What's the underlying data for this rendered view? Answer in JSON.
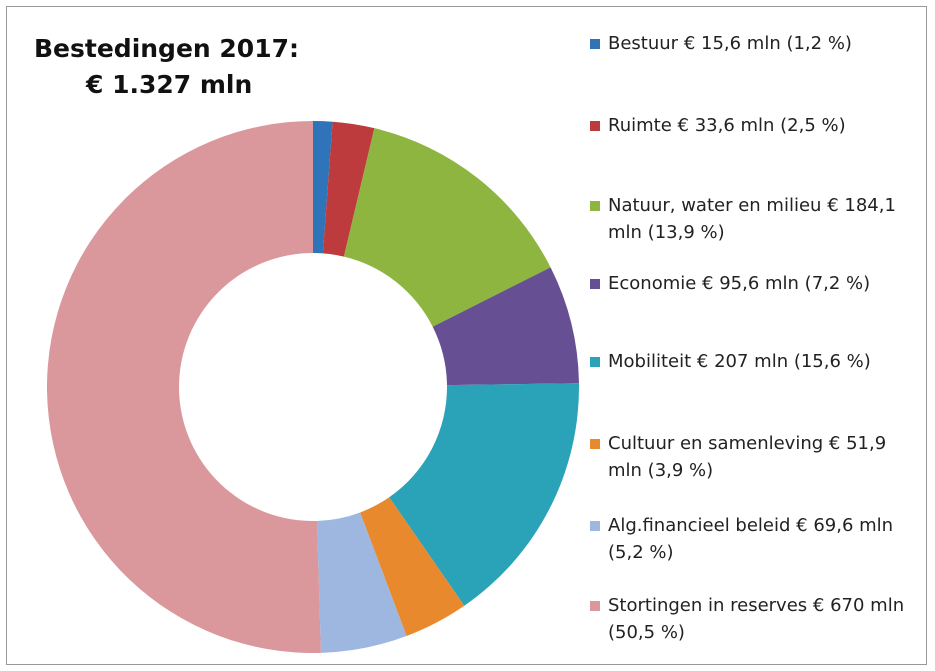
{
  "chart_data": {
    "type": "donut",
    "title": "Bestedingen 2017:",
    "subtitle": "€ 1.327 mln",
    "categories": [
      "Bestuur",
      "Ruimte",
      "Natuur, water en milieu",
      "Economie",
      "Mobiliteit",
      "Cultuur en samenleving",
      "Alg.financieel beleid",
      "Stortingen in reserves"
    ],
    "values": [
      15.6,
      33.6,
      184.1,
      95.6,
      207,
      51.9,
      69.6,
      670
    ],
    "value_labels": [
      "€ 15,6  mln  (1,2 %)",
      "€ 33,6  mln  (2,5 %)",
      "€ 184,1  mln  (13,9 %)",
      "€ 95,6  mln  (7,2 %)",
      "€ 207  mln  (15,6 %)",
      "€ 51,9 mln  (3,9 %)",
      "€ 69,6 mln  (5,2 %)",
      "€ 670 mln  (50,5 %)"
    ],
    "colors": [
      "#2f73b8",
      "#be3b3d",
      "#8db53f",
      "#664f92",
      "#2aa2b8",
      "#e9892d",
      "#9db7e1",
      "#da979c"
    ],
    "legend": "right"
  }
}
